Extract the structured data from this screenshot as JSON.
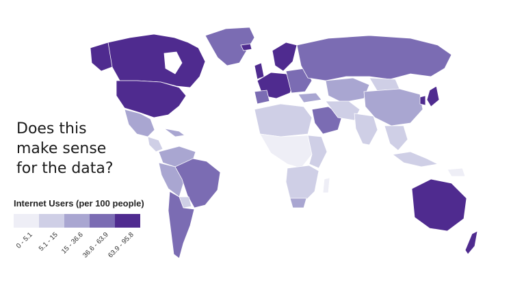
{
  "question": {
    "lines": [
      "Does this",
      "make sense",
      "for the data?"
    ]
  },
  "legend": {
    "title": "Internet Users (per 100 people)",
    "bins": [
      {
        "label": "0 - 5.1",
        "color": "#eeeef6"
      },
      {
        "label": "5.1 - 15",
        "color": "#cfcfe6"
      },
      {
        "label": "15 - 36.6",
        "color": "#a9a6d1"
      },
      {
        "label": "36.6 - 63.9",
        "color": "#7b6cb3"
      },
      {
        "label": "63.9 - 95.8",
        "color": "#4f2b8f"
      }
    ]
  },
  "colors": {
    "ocean": "#ffffff",
    "border": "#ffffff"
  }
}
